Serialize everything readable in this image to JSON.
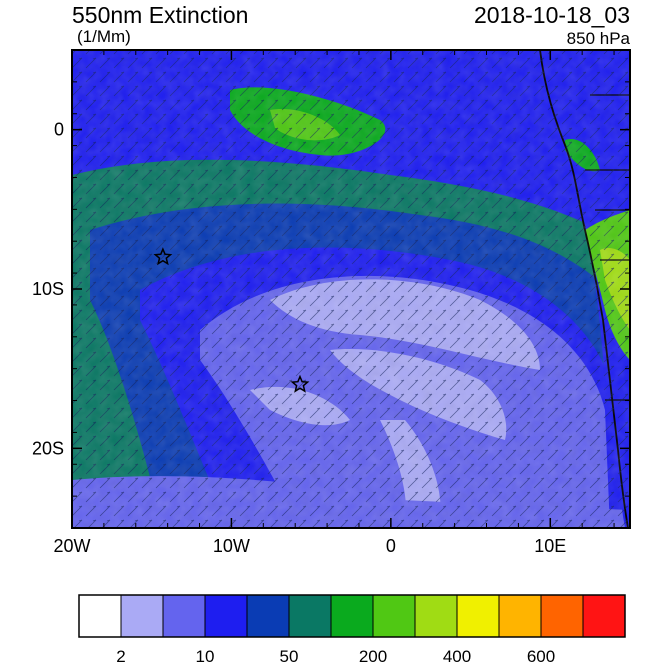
{
  "title": "550nm Extinction",
  "units": "(1/Mm)",
  "datetime": "2018-10-18_03",
  "level": "850 hPa",
  "axes": {
    "x_ticks": [
      {
        "label": "20W",
        "lon": -20
      },
      {
        "label": "10W",
        "lon": -10
      },
      {
        "label": "0",
        "lon": 0
      },
      {
        "label": "10E",
        "lon": 10
      }
    ],
    "y_ticks": [
      {
        "label": "0",
        "lat": 0
      },
      {
        "label": "10S",
        "lat": -10
      },
      {
        "label": "20S",
        "lat": -20
      }
    ],
    "lon_range": [
      -20,
      15
    ],
    "lat_range": [
      -25,
      5
    ]
  },
  "colorbar": {
    "colors": [
      "#ffffff",
      "#aaaaf5",
      "#6464ee",
      "#1e1ef0",
      "#0a3cb4",
      "#0a7864",
      "#0aaa1e",
      "#50c814",
      "#a0dc14",
      "#f0f000",
      "#ffb400",
      "#ff6400",
      "#ff1414"
    ],
    "labels": [
      {
        "text": "2",
        "index": 1
      },
      {
        "text": "10",
        "index": 3
      },
      {
        "text": "50",
        "index": 5
      },
      {
        "text": "200",
        "index": 7
      },
      {
        "text": "400",
        "index": 9
      },
      {
        "text": "600",
        "index": 11
      }
    ]
  },
  "markers": [
    {
      "name": "star-marker-west",
      "lon": -14.3,
      "lat": -8.0
    },
    {
      "name": "star-marker-center",
      "lon": -5.7,
      "lat": -16.0
    }
  ]
}
